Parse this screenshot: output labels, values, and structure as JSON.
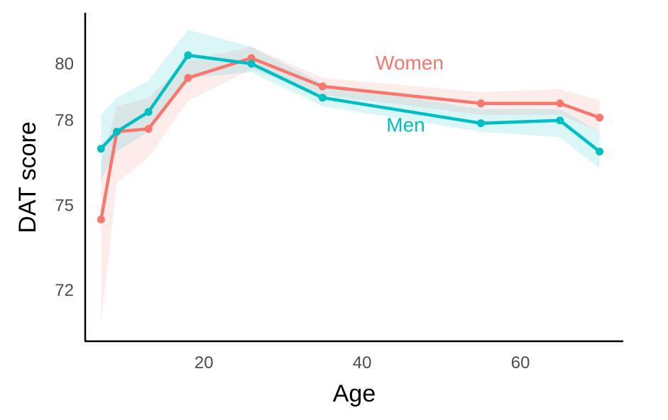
{
  "chart_data": {
    "type": "line",
    "xlabel": "Age",
    "ylabel": "DAT score",
    "xlim": [
      5,
      73
    ],
    "ylim": [
      70.2,
      81.8
    ],
    "x_ticks": [
      20,
      40,
      60
    ],
    "y_ticks": [
      72,
      75,
      78,
      80
    ],
    "y_tick_labels": [
      "72",
      "75",
      "78",
      "80"
    ],
    "grid": false,
    "legend": "none",
    "series": [
      {
        "name": "Women",
        "color": "#F8766D",
        "x": [
          7,
          9,
          13,
          18,
          26,
          35,
          55,
          65,
          70
        ],
        "y": [
          74.5,
          77.6,
          77.7,
          79.5,
          80.2,
          79.2,
          78.6,
          78.6,
          78.1
        ],
        "lower": [
          70.8,
          75.8,
          76.7,
          78.7,
          79.8,
          78.9,
          78.2,
          78.2,
          77.6
        ],
        "upper": [
          76.5,
          78.5,
          78.8,
          80.1,
          80.6,
          79.5,
          79.0,
          79.1,
          78.7
        ]
      },
      {
        "name": "Men",
        "color": "#00BFC4",
        "x": [
          7,
          9,
          13,
          18,
          26,
          35,
          55,
          65,
          70
        ],
        "y": [
          77.0,
          77.6,
          78.3,
          80.3,
          80.0,
          78.8,
          77.9,
          78.0,
          76.9
        ],
        "lower": [
          75.9,
          76.9,
          77.6,
          79.5,
          79.7,
          78.5,
          77.6,
          77.4,
          76.3
        ],
        "upper": [
          78.2,
          78.8,
          79.4,
          81.2,
          80.6,
          79.3,
          78.4,
          78.4,
          77.6
        ]
      }
    ],
    "annotations": [
      {
        "text": "Women",
        "x": 46,
        "y": 79.8,
        "color": "#F8766D"
      },
      {
        "text": "Men",
        "x": 45.5,
        "y": 77.6,
        "color": "#00BFC4"
      }
    ]
  }
}
